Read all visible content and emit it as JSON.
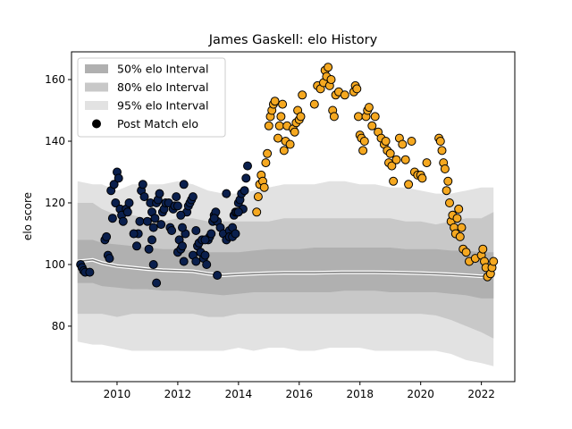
{
  "chart_data": {
    "type": "scatter",
    "title": "James Gaskell: elo History",
    "xlabel": "",
    "ylabel": "elo score",
    "xlim": [
      2008.5,
      2023.1
    ],
    "ylim": [
      62,
      169
    ],
    "x_ticks": [
      2010,
      2012,
      2014,
      2016,
      2018,
      2020,
      2022
    ],
    "y_ticks": [
      80,
      100,
      120,
      140,
      160
    ],
    "grid": false,
    "legend": {
      "position": "top-left",
      "entries": [
        {
          "label": "50% elo Interval",
          "color": "#b0b0b0"
        },
        {
          "label": "80% elo Interval",
          "color": "#c8c8c8"
        },
        {
          "label": "95% elo Interval",
          "color": "#e2e2e2"
        },
        {
          "label": "Post Match elo",
          "color": "#000000"
        }
      ]
    },
    "colors": {
      "early": "#0a1f4d",
      "late": "#f5a820",
      "mean_line": "#7d7d7d"
    },
    "bands": {
      "x": [
        2008.7,
        2009.2,
        2009.5,
        2010.0,
        2010.5,
        2011.0,
        2011.5,
        2012.0,
        2012.5,
        2013.0,
        2013.5,
        2014.0,
        2014.5,
        2015.0,
        2015.5,
        2016.0,
        2016.5,
        2017.0,
        2017.5,
        2018.0,
        2018.5,
        2019.0,
        2019.5,
        2020.0,
        2020.5,
        2021.0,
        2021.5,
        2022.0,
        2022.4
      ],
      "mean": [
        101,
        101.5,
        100.5,
        99.5,
        99,
        98.5,
        98.2,
        98,
        97.8,
        97,
        96.5,
        96.8,
        97,
        97.2,
        97.3,
        97.3,
        97.3,
        97.4,
        97.5,
        97.5,
        97.5,
        97.4,
        97.3,
        97.2,
        97,
        96.8,
        96.5,
        96.2,
        96.5
      ],
      "p50_lo": [
        94,
        94,
        93,
        92.5,
        92,
        92,
        91.5,
        91.5,
        91,
        90.5,
        90,
        90.5,
        91,
        91,
        91,
        91,
        91,
        91,
        91.5,
        91.5,
        91.5,
        91,
        91,
        91,
        91,
        90.5,
        90,
        89,
        89
      ],
      "p50_hi": [
        108,
        108,
        107,
        106.5,
        106,
        105.5,
        105,
        105,
        104.5,
        104,
        104,
        104,
        104.5,
        105,
        105,
        105,
        105.5,
        105.5,
        105.5,
        105.5,
        105.5,
        105.5,
        105,
        105,
        105,
        104.5,
        104.5,
        104,
        104
      ],
      "p80_lo": [
        84,
        84,
        84,
        83,
        84,
        84,
        84,
        84,
        84,
        83,
        83,
        84,
        84,
        84,
        84,
        84,
        84,
        84,
        84,
        84,
        84,
        84,
        84,
        84,
        83.5,
        82,
        80,
        78,
        76
      ],
      "p80_hi": [
        120,
        120,
        118,
        116,
        116,
        115,
        114,
        115,
        115,
        114,
        114,
        114,
        114,
        114,
        115,
        115,
        115,
        115,
        115,
        115,
        115,
        115,
        114,
        114,
        113,
        114,
        115,
        115,
        117
      ],
      "p95_lo": [
        75,
        74,
        74,
        73,
        72,
        72,
        72,
        72,
        72,
        72,
        72,
        73,
        72,
        73,
        73,
        72,
        72,
        73,
        73,
        73,
        72,
        72,
        72,
        72,
        72,
        71,
        69,
        68,
        67
      ],
      "p95_hi": [
        127,
        126,
        126,
        124,
        126,
        126,
        126,
        127,
        126,
        124,
        123,
        123,
        124,
        125,
        126,
        126,
        126,
        127,
        127,
        126,
        126,
        125,
        125,
        124,
        123,
        123,
        124,
        125,
        125
      ]
    },
    "series": [
      {
        "name": "Post Match elo",
        "color_key": "early",
        "x": [
          2008.8,
          2008.85,
          2008.9,
          2008.95,
          2009.1,
          2009.6,
          2009.65,
          2009.7,
          2009.75,
          2009.8,
          2009.85,
          2009.9,
          2009.95,
          2010.0,
          2010.05,
          2010.1,
          2010.15,
          2010.2,
          2010.3,
          2010.35,
          2010.4,
          2010.65,
          2010.7,
          2010.75,
          2010.8,
          2010.85,
          2010.9,
          2011.0,
          2011.1,
          2011.15,
          2011.2,
          2011.25,
          2011.3,
          2011.35,
          2011.4,
          2011.45,
          2011.5,
          2011.55,
          2011.6,
          2011.7,
          2011.75,
          2011.8,
          2011.85,
          2011.9,
          2011.95,
          2012.0,
          2012.05,
          2012.1,
          2012.15,
          2012.2,
          2012.25,
          2012.3,
          2012.35,
          2012.4,
          2012.45,
          2012.5,
          2012.6,
          2012.65,
          2012.7,
          2012.75,
          2012.8,
          2012.85,
          2012.9,
          2012.95,
          2013.0,
          2013.05,
          2013.1,
          2013.15,
          2013.2,
          2013.25,
          2013.3,
          2013.4,
          2013.5,
          2013.6,
          2013.7,
          2013.8,
          2013.85,
          2013.9,
          2013.95,
          2014.0,
          2014.05,
          2014.1,
          2014.15,
          2014.2,
          2014.25,
          2014.3
        ],
        "y": [
          100,
          99,
          98,
          97.5,
          97.5,
          108,
          109,
          103,
          102,
          124,
          115,
          126,
          120,
          130,
          128,
          118,
          116,
          114,
          118,
          117,
          120,
          106,
          110,
          114,
          124,
          126,
          122,
          114,
          120,
          117,
          112,
          115,
          120,
          121,
          123,
          113,
          117,
          118,
          120,
          120,
          112,
          111,
          118,
          119,
          122,
          104,
          108,
          105,
          106,
          101,
          110,
          117,
          119,
          120,
          121,
          122,
          111,
          106,
          107,
          104,
          108,
          102,
          103,
          100,
          108,
          109,
          110,
          114,
          116,
          117,
          114,
          112,
          110,
          108,
          111,
          112,
          116,
          117,
          117,
          120,
          121,
          123,
          118,
          124,
          128,
          132
        ],
        "extra": {
          "x": [
            2010.55,
            2011.05,
            2011.15,
            2011.2,
            2011.3,
            2012.0,
            2012.1,
            2012.15,
            2012.2,
            2012.5,
            2012.6,
            2012.9,
            2013.2,
            2013.3,
            2013.6,
            2013.7,
            2013.8,
            2013.9,
            2014.0
          ],
          "y": [
            110,
            105,
            108,
            100,
            94,
            119,
            116,
            112,
            126,
            103,
            101,
            108,
            115,
            96.5,
            123,
            109,
            109,
            110,
            117
          ]
        }
      },
      {
        "name": "Post Match elo",
        "color_key": "late",
        "x": [
          2014.6,
          2014.65,
          2014.7,
          2014.75,
          2014.8,
          2014.85,
          2014.9,
          2014.95,
          2015.0,
          2015.05,
          2015.1,
          2015.15,
          2015.2,
          2015.3,
          2015.35,
          2015.4,
          2015.45,
          2015.5,
          2015.55,
          2015.6,
          2015.7,
          2015.8,
          2015.85,
          2015.9,
          2015.95,
          2016.0,
          2016.05,
          2016.1,
          2016.5,
          2016.6,
          2016.7,
          2016.8,
          2016.85,
          2016.9,
          2016.95,
          2017.0,
          2017.05,
          2017.1,
          2017.15,
          2017.2,
          2017.3,
          2017.5,
          2017.8,
          2017.85,
          2017.9,
          2017.95,
          2018.0,
          2018.05,
          2018.1,
          2018.15,
          2018.2,
          2018.25,
          2018.3,
          2018.4,
          2018.5,
          2018.6,
          2018.7,
          2018.8,
          2018.85,
          2018.9,
          2018.95,
          2019.0,
          2019.05,
          2019.1,
          2019.2,
          2019.3,
          2019.4,
          2019.5,
          2019.6,
          2019.7,
          2019.8,
          2019.9,
          2020.0,
          2020.05,
          2020.2,
          2020.6,
          2020.65,
          2020.7,
          2020.75,
          2020.8,
          2020.85,
          2020.9,
          2020.95,
          2021.0,
          2021.05,
          2021.1,
          2021.15,
          2021.2,
          2021.25,
          2021.3,
          2021.35,
          2021.4,
          2021.5,
          2021.6,
          2021.8,
          2022.0,
          2022.05,
          2022.1,
          2022.15,
          2022.2,
          2022.3,
          2022.35,
          2022.4
        ],
        "y": [
          117,
          122,
          126,
          129,
          127,
          125,
          133,
          136,
          145,
          148,
          150,
          152,
          153,
          141,
          145,
          148,
          152,
          137,
          140,
          145,
          139,
          144,
          143,
          146,
          150,
          147,
          148,
          155,
          152,
          158,
          157,
          159,
          163,
          161,
          164,
          158,
          160,
          150,
          148,
          155,
          156,
          155,
          156,
          158,
          157,
          148,
          142,
          141,
          137,
          140,
          148,
          150,
          151,
          145,
          148,
          143,
          141,
          139,
          140,
          137,
          133,
          136,
          132,
          127,
          134,
          141,
          139,
          134,
          126,
          140,
          130,
          129,
          129,
          128,
          133,
          141,
          140,
          137,
          133,
          131,
          124,
          127,
          120,
          114,
          116,
          112,
          110,
          115,
          118,
          109,
          112,
          105,
          104,
          101,
          102,
          103,
          105,
          101,
          99,
          96,
          97,
          99,
          101
        ]
      }
    ]
  }
}
